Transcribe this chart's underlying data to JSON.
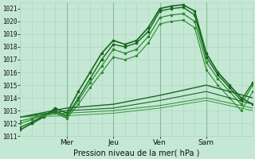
{
  "title": "Pression niveau de la mer( hPa )",
  "bg_color": "#c4e8d4",
  "grid_color_minor": "#aad4bc",
  "grid_color_major": "#88bb99",
  "line_dark": "#1a6620",
  "line_mid": "#2d8b2d",
  "ylim": [
    1011,
    1021.5
  ],
  "xlim": [
    0,
    120
  ],
  "yticks": [
    1011,
    1012,
    1013,
    1014,
    1015,
    1016,
    1017,
    1018,
    1019,
    1020,
    1021
  ],
  "xtick_positions": [
    24,
    48,
    72,
    96
  ],
  "xtick_labels": [
    "Mer",
    "Jeu",
    "Ven",
    "Sam"
  ],
  "day_lines": [
    24,
    48,
    72,
    96
  ],
  "minor_v_step": 6,
  "lines": [
    {
      "x": [
        0,
        6,
        12,
        18,
        24,
        30,
        36,
        42,
        48,
        54,
        60,
        66,
        72,
        78,
        84,
        90,
        96,
        102,
        108,
        114,
        120
      ],
      "y": [
        1011.5,
        1012.0,
        1012.5,
        1013.2,
        1012.8,
        1014.5,
        1016.0,
        1017.5,
        1018.5,
        1018.2,
        1018.5,
        1019.5,
        1021.0,
        1021.2,
        1021.3,
        1020.8,
        1017.5,
        1016.0,
        1015.0,
        1014.0,
        1013.5
      ],
      "style": "-",
      "lw": 1.2,
      "marker": "s",
      "ms": 1.5,
      "color": "#1a6620"
    },
    {
      "x": [
        0,
        6,
        12,
        18,
        24,
        30,
        36,
        42,
        48,
        54,
        60,
        66,
        72,
        78,
        84,
        90,
        96,
        102,
        108,
        114,
        120
      ],
      "y": [
        1011.7,
        1012.1,
        1012.6,
        1013.0,
        1012.6,
        1014.0,
        1015.5,
        1017.0,
        1018.2,
        1018.0,
        1018.3,
        1019.2,
        1020.8,
        1021.0,
        1021.1,
        1020.5,
        1017.2,
        1015.8,
        1014.8,
        1013.8,
        1015.2
      ],
      "style": "-",
      "lw": 1.0,
      "marker": "s",
      "ms": 1.5,
      "color": "#1a6620"
    },
    {
      "x": [
        0,
        6,
        12,
        18,
        24,
        30,
        36,
        42,
        48,
        54,
        60,
        66,
        72,
        78,
        84,
        90,
        96,
        102,
        108,
        114,
        120
      ],
      "y": [
        1012.0,
        1012.3,
        1012.7,
        1012.9,
        1012.5,
        1013.8,
        1015.2,
        1016.5,
        1017.8,
        1017.5,
        1017.8,
        1018.8,
        1020.3,
        1020.5,
        1020.6,
        1020.0,
        1016.8,
        1015.5,
        1014.5,
        1013.5,
        1015.0
      ],
      "style": "-",
      "lw": 0.9,
      "marker": "s",
      "ms": 1.5,
      "color": "#2d8b2d"
    },
    {
      "x": [
        0,
        6,
        12,
        18,
        24,
        30,
        36,
        42,
        48,
        54,
        60,
        66,
        72,
        78,
        84,
        90,
        96,
        102,
        108,
        114,
        120
      ],
      "y": [
        1012.2,
        1012.4,
        1012.6,
        1012.8,
        1012.4,
        1013.5,
        1014.8,
        1016.0,
        1017.2,
        1017.0,
        1017.3,
        1018.3,
        1019.8,
        1020.0,
        1020.1,
        1019.5,
        1016.2,
        1015.0,
        1014.0,
        1013.0,
        1014.5
      ],
      "style": "-",
      "lw": 0.8,
      "marker": "s",
      "ms": 1.2,
      "color": "#2d8b2d"
    },
    {
      "x": [
        0,
        24,
        48,
        72,
        96,
        120
      ],
      "y": [
        1012.5,
        1013.2,
        1013.5,
        1014.2,
        1015.0,
        1014.0
      ],
      "style": "-",
      "lw": 1.0,
      "marker": null,
      "ms": 0,
      "color": "#1a6620"
    },
    {
      "x": [
        0,
        24,
        48,
        72,
        96,
        120
      ],
      "y": [
        1012.5,
        1013.0,
        1013.2,
        1013.8,
        1014.5,
        1013.5
      ],
      "style": "-",
      "lw": 0.8,
      "marker": null,
      "ms": 0,
      "color": "#1a6620"
    },
    {
      "x": [
        0,
        24,
        48,
        72,
        96,
        120
      ],
      "y": [
        1012.5,
        1012.8,
        1013.0,
        1013.4,
        1014.0,
        1013.2
      ],
      "style": "-",
      "lw": 0.7,
      "marker": null,
      "ms": 0,
      "color": "#2d8b2d"
    },
    {
      "x": [
        0,
        24,
        48,
        72,
        96,
        120
      ],
      "y": [
        1012.5,
        1012.6,
        1012.8,
        1013.2,
        1013.8,
        1013.0
      ],
      "style": "-",
      "lw": 0.6,
      "marker": null,
      "ms": 0,
      "color": "#2d8b2d"
    }
  ]
}
